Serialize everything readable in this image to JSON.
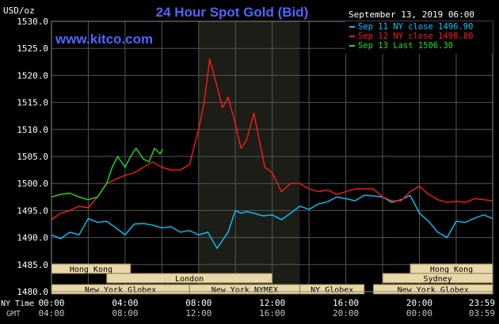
{
  "header": {
    "currency_label": "USD/oz",
    "title": "24 Hour Spot Gold (Bid)",
    "watermark": "www.kitco.com",
    "date": "September 13, 2019 06:00"
  },
  "legend": [
    {
      "text": "Sep 11 NY close 1496.90",
      "color": "#00c8ff"
    },
    {
      "text": "Sep 12 NY close 1498.80",
      "color": "#ff1a1a"
    },
    {
      "text": "Sep 13 Last 1506.30",
      "color": "#22dd22"
    }
  ],
  "time_axis": {
    "ny_label": "NY Time",
    "gmt_label": "GMT",
    "ny_ticks": [
      "00:00",
      "04:00",
      "08:00",
      "12:00",
      "16:00",
      "20:00",
      "23:59"
    ],
    "gmt_ticks": [
      "04:00",
      "08:00",
      "12:00",
      "16:00",
      "20:00",
      "00:00",
      "03:59"
    ]
  },
  "markets": [
    {
      "label": "Hong Kong",
      "start": 0,
      "end": 4.3
    },
    {
      "label": "London",
      "start": 3.0,
      "end": 12.0
    },
    {
      "label": "New York Globex",
      "start": 0,
      "end": 7.5
    },
    {
      "label": "New York NYMEX",
      "start": 7.5,
      "end": 13.5
    },
    {
      "label": "NY Globex",
      "start": 13.5,
      "end": 17.0
    },
    {
      "label": "Hong Kong",
      "start": 19.5,
      "end": 23.99
    },
    {
      "label": "Sydney",
      "start": 18.0,
      "end": 23.99
    },
    {
      "label": "New York Globex",
      "start": 17.5,
      "end": 23.99
    }
  ],
  "chart_data": {
    "type": "line",
    "x_unit": "hours (NY time)",
    "xlim": [
      0,
      23.983
    ],
    "ylim": [
      1480,
      1530
    ],
    "yticks": [
      "1480.0",
      "1485.0",
      "1490.0",
      "1495.0",
      "1500.0",
      "1505.0",
      "1510.0",
      "1515.0",
      "1520.0",
      "1525.0",
      "1530.0"
    ],
    "highlight_band": [
      8.0,
      13.5
    ],
    "grid": true,
    "series": [
      {
        "name": "Sep 11 NY close 1496.90",
        "color": "#00c8ff",
        "x": [
          0,
          0.5,
          1,
          1.5,
          2,
          2.5,
          3,
          3.5,
          4,
          4.5,
          5,
          5.5,
          6,
          6.5,
          7,
          7.5,
          8,
          8.5,
          9,
          9.3,
          9.6,
          10,
          10.3,
          10.6,
          11,
          11.5,
          12,
          12.5,
          13,
          13.5,
          14,
          14.5,
          15,
          15.5,
          16,
          16.5,
          17,
          17.5,
          18,
          18.5,
          19,
          19.5,
          20,
          20.5,
          21,
          21.5,
          22,
          22.5,
          23,
          23.5,
          23.98
        ],
        "y": [
          1490.5,
          1489.8,
          1491.0,
          1490.5,
          1493.5,
          1492.8,
          1493.0,
          1491.8,
          1490.5,
          1492.5,
          1492.6,
          1492.3,
          1491.8,
          1492.0,
          1491.0,
          1491.3,
          1490.5,
          1491.0,
          1488.0,
          1489.5,
          1491.0,
          1495.0,
          1494.5,
          1494.8,
          1494.5,
          1494.0,
          1494.2,
          1493.3,
          1494.5,
          1495.8,
          1495.2,
          1496.2,
          1496.6,
          1497.5,
          1497.2,
          1496.8,
          1497.8,
          1497.7,
          1497.5,
          1496.5,
          1497.0,
          1497.8,
          1494.5,
          1493.0,
          1491.0,
          1490.0,
          1493.0,
          1492.8,
          1493.6,
          1494.2,
          1493.5
        ]
      },
      {
        "name": "Sep 12 NY close 1498.80",
        "color": "#ff1a1a",
        "x": [
          0,
          0.5,
          1,
          1.5,
          2,
          2.5,
          3,
          3.5,
          4,
          4.5,
          5,
          5.5,
          6,
          6.5,
          7,
          7.5,
          8,
          8.3,
          8.6,
          9,
          9.3,
          9.6,
          10,
          10.3,
          10.6,
          11,
          11.3,
          11.6,
          12,
          12.5,
          13,
          13.5,
          14,
          14.5,
          15,
          15.5,
          16,
          16.5,
          17,
          17.5,
          18,
          18.5,
          19,
          19.5,
          20,
          20.5,
          21,
          21.5,
          22,
          22.5,
          23,
          23.5,
          23.98
        ],
        "y": [
          1493.3,
          1494.5,
          1495.0,
          1495.8,
          1495.5,
          1497.5,
          1500.0,
          1500.8,
          1501.5,
          1502.0,
          1503.0,
          1504.0,
          1503.0,
          1502.5,
          1502.5,
          1503.5,
          1510.0,
          1515.0,
          1523.0,
          1518.0,
          1514.0,
          1516.0,
          1511.0,
          1506.5,
          1508.0,
          1513.0,
          1508.0,
          1503.0,
          1502.0,
          1498.5,
          1500.0,
          1500.0,
          1499.0,
          1498.5,
          1498.8,
          1498.0,
          1498.5,
          1499.0,
          1499.0,
          1499.0,
          1497.5,
          1496.8,
          1496.8,
          1498.5,
          1499.5,
          1498.0,
          1497.0,
          1496.5,
          1496.7,
          1496.5,
          1497.2,
          1497.0,
          1496.8
        ]
      },
      {
        "name": "Sep 13 Last 1506.30",
        "color": "#22dd22",
        "x": [
          0,
          0.5,
          1,
          1.5,
          2,
          2.5,
          3,
          3.3,
          3.6,
          4,
          4.3,
          4.6,
          5,
          5.3,
          5.6,
          5.9,
          6.05
        ],
        "y": [
          1497.5,
          1498.0,
          1498.2,
          1497.5,
          1497.0,
          1497.5,
          1500.0,
          1503.0,
          1505.0,
          1503.0,
          1505.0,
          1506.5,
          1504.5,
          1504.0,
          1506.5,
          1505.5,
          1506.3
        ]
      }
    ]
  }
}
